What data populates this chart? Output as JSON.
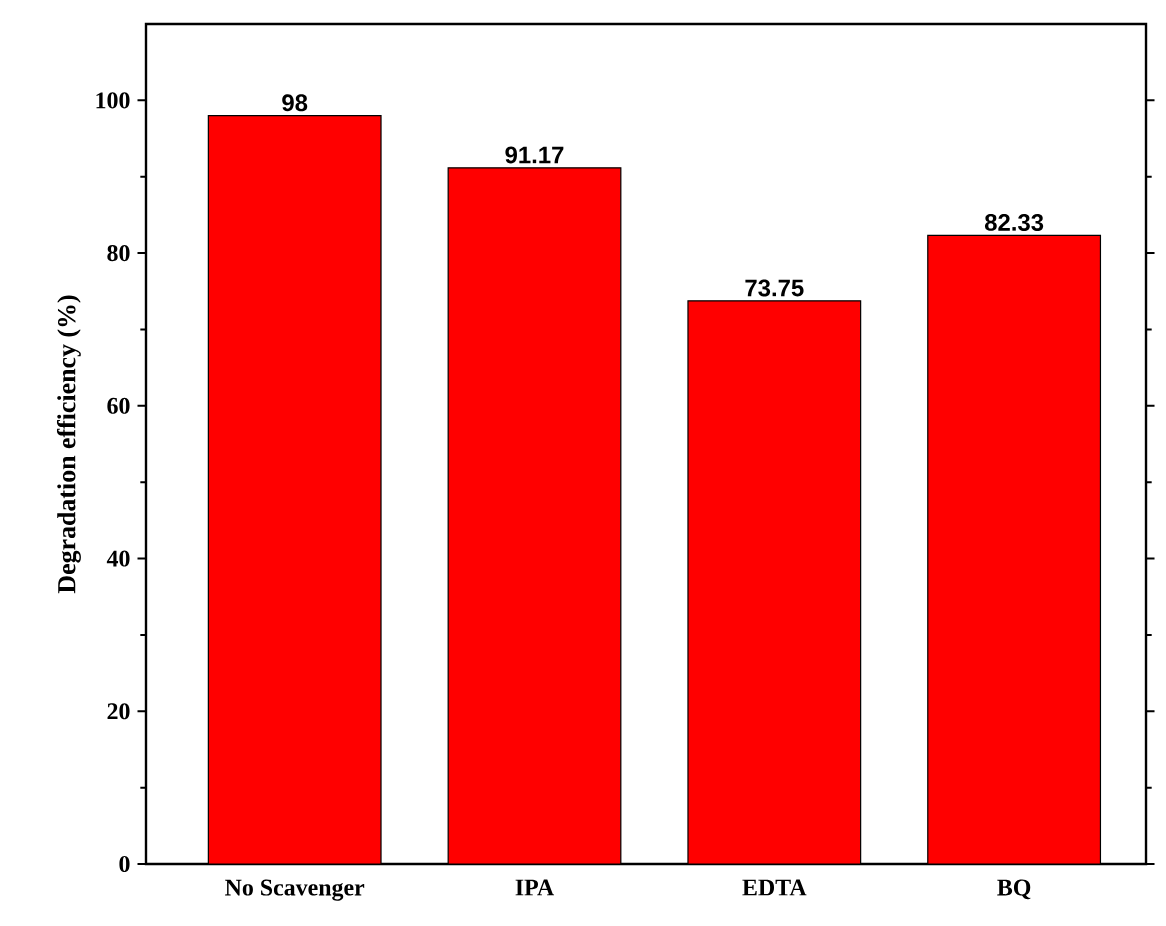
{
  "chart_data": {
    "type": "bar",
    "ylabel": "Degradation efficiency (%)",
    "categories": [
      "No Scavenger",
      "IPA",
      "EDTA",
      "BQ"
    ],
    "values": [
      98,
      91.17,
      73.75,
      82.33
    ],
    "color": "#ff0000",
    "ylim": [
      0,
      110
    ],
    "yticks": [
      0,
      20,
      40,
      60,
      80,
      100
    ],
    "data_labels": true
  }
}
